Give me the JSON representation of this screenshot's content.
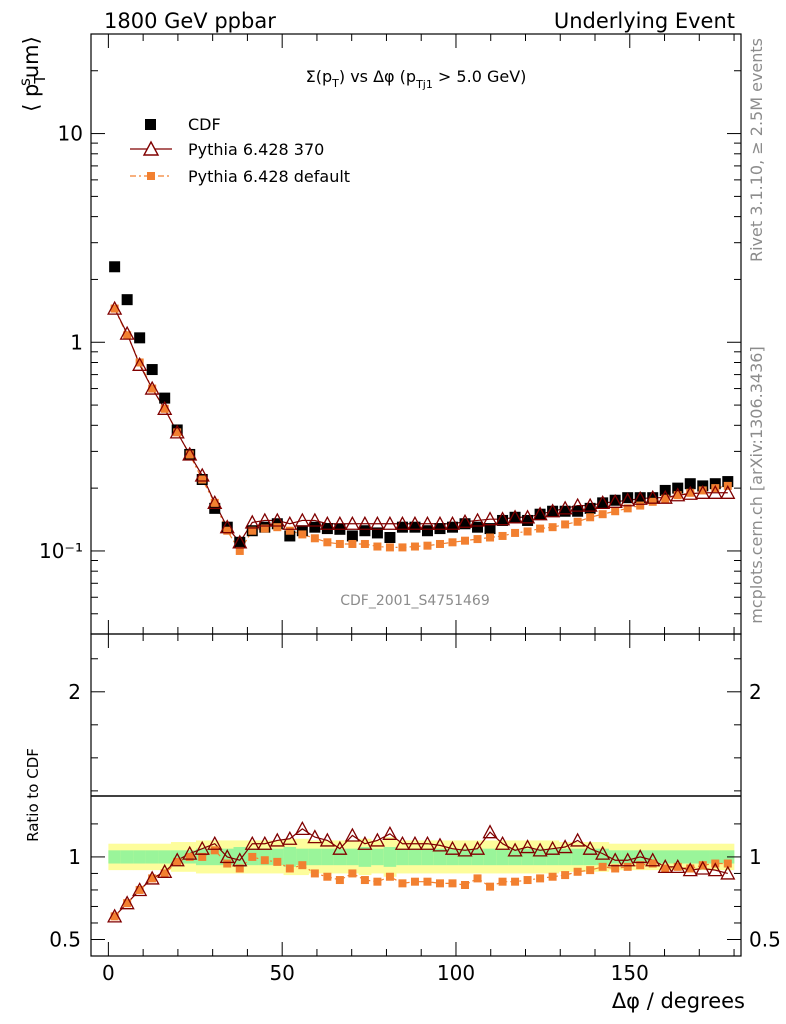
{
  "header": {
    "left": "1800 GeV ppbar",
    "right": "Underlying Event"
  },
  "side_labels": {
    "rivet": "Rivet 3.1.10, ≥ 2.5M events",
    "mcplots": "mcplots.cern.ch [arXiv:1306.3436]"
  },
  "watermark": "CDF_2001_S4751469",
  "chart_data": [
    {
      "type": "scatter",
      "panel": "main",
      "title": "Σ(pT) vs Δφ (pTj1 > 5.0 GeV)",
      "ylabel": "⟨ pTsum⟩",
      "yscale": "log",
      "ylim": [
        0.04,
        30
      ],
      "xlim": [
        -5,
        182
      ],
      "ytick_labels": [
        "10⁻¹",
        "1",
        "10"
      ],
      "legend_position": "top-left",
      "x": [
        1.8,
        5.4,
        9.0,
        12.6,
        16.2,
        19.8,
        23.4,
        27.0,
        30.6,
        34.2,
        37.8,
        41.4,
        45.0,
        48.6,
        52.2,
        55.8,
        59.4,
        63.0,
        66.6,
        70.2,
        73.8,
        77.4,
        81.0,
        84.6,
        88.2,
        91.8,
        95.4,
        99.0,
        102.6,
        106.2,
        109.8,
        113.4,
        117.0,
        120.6,
        124.2,
        127.8,
        131.4,
        135.0,
        138.6,
        142.2,
        145.8,
        149.4,
        153.0,
        156.6,
        160.2,
        163.8,
        167.4,
        171.0,
        174.6,
        178.2
      ],
      "series": [
        {
          "name": "CDF",
          "marker": "square",
          "color": "#000000",
          "values": [
            2.3,
            1.6,
            1.05,
            0.74,
            0.54,
            0.38,
            0.29,
            0.22,
            0.16,
            0.13,
            0.11,
            0.125,
            0.13,
            0.135,
            0.118,
            0.125,
            0.13,
            0.128,
            0.127,
            0.118,
            0.125,
            0.122,
            0.116,
            0.13,
            0.13,
            0.125,
            0.128,
            0.13,
            0.135,
            0.13,
            0.128,
            0.14,
            0.145,
            0.14,
            0.15,
            0.155,
            0.155,
            0.155,
            0.16,
            0.17,
            0.175,
            0.18,
            0.18,
            0.18,
            0.195,
            0.2,
            0.21,
            0.205,
            0.21,
            0.215
          ]
        },
        {
          "name": "Pythia 6.428 370",
          "marker": "open-triangle",
          "color": "#800000",
          "values": [
            1.45,
            1.1,
            0.78,
            0.6,
            0.48,
            0.37,
            0.29,
            0.23,
            0.17,
            0.13,
            0.11,
            0.137,
            0.14,
            0.14,
            0.135,
            0.14,
            0.14,
            0.135,
            0.135,
            0.135,
            0.135,
            0.135,
            0.135,
            0.135,
            0.135,
            0.135,
            0.135,
            0.135,
            0.138,
            0.14,
            0.142,
            0.142,
            0.145,
            0.145,
            0.15,
            0.155,
            0.16,
            0.165,
            0.165,
            0.17,
            0.172,
            0.175,
            0.178,
            0.18,
            0.18,
            0.185,
            0.188,
            0.19,
            0.19,
            0.19
          ]
        },
        {
          "name": "Pythia 6.428 default",
          "marker": "filled-square",
          "color": "#f28030",
          "values": [
            1.45,
            1.08,
            0.8,
            0.6,
            0.48,
            0.37,
            0.29,
            0.22,
            0.17,
            0.125,
            0.1,
            0.125,
            0.128,
            0.13,
            0.125,
            0.12,
            0.115,
            0.11,
            0.108,
            0.108,
            0.108,
            0.105,
            0.104,
            0.104,
            0.105,
            0.106,
            0.108,
            0.11,
            0.112,
            0.114,
            0.116,
            0.118,
            0.122,
            0.124,
            0.128,
            0.13,
            0.134,
            0.138,
            0.145,
            0.15,
            0.155,
            0.16,
            0.165,
            0.172,
            0.178,
            0.185,
            0.19,
            0.195,
            0.2,
            0.205
          ]
        }
      ]
    },
    {
      "type": "scatter",
      "panel": "ratio",
      "ylabel": "Ratio to CDF",
      "xlabel": "Δφ / degrees",
      "ylim": [
        0.4,
        2.35
      ],
      "xlim": [
        -5,
        182
      ],
      "x_tick_labels": [
        "0",
        "50",
        "100",
        "150"
      ],
      "y_tick_labels": [
        "0.5",
        "1",
        "2"
      ],
      "bands": {
        "inner_color": "#9af59a",
        "outer_color": "#fdfd9c",
        "inner_halfwidth": [
          0.04,
          0.04,
          0.04,
          0.04,
          0.04,
          0.04,
          0.04,
          0.05,
          0.05,
          0.05,
          0.06,
          0.05,
          0.05,
          0.05,
          0.06,
          0.05,
          0.05,
          0.05,
          0.05,
          0.05,
          0.06,
          0.05,
          0.06,
          0.05,
          0.05,
          0.05,
          0.05,
          0.05,
          0.05,
          0.05,
          0.05,
          0.05,
          0.05,
          0.05,
          0.05,
          0.05,
          0.05,
          0.05,
          0.05,
          0.05,
          0.04,
          0.04,
          0.04,
          0.04,
          0.04,
          0.04,
          0.04,
          0.04,
          0.04,
          0.04
        ],
        "outer_halfwidth": [
          0.08,
          0.08,
          0.08,
          0.08,
          0.08,
          0.09,
          0.09,
          0.1,
          0.1,
          0.1,
          0.1,
          0.1,
          0.1,
          0.1,
          0.11,
          0.11,
          0.1,
          0.1,
          0.1,
          0.1,
          0.11,
          0.1,
          0.12,
          0.1,
          0.1,
          0.1,
          0.1,
          0.1,
          0.1,
          0.1,
          0.1,
          0.1,
          0.1,
          0.1,
          0.1,
          0.1,
          0.09,
          0.09,
          0.09,
          0.09,
          0.08,
          0.08,
          0.08,
          0.08,
          0.08,
          0.08,
          0.08,
          0.08,
          0.08,
          0.08
        ]
      },
      "series": [
        {
          "name": "Pythia 6.428 370",
          "marker": "open-triangle",
          "color": "#800000",
          "values": [
            0.64,
            0.72,
            0.8,
            0.87,
            0.91,
            0.98,
            1.02,
            1.05,
            1.08,
            1.0,
            0.98,
            1.08,
            1.08,
            1.1,
            1.11,
            1.17,
            1.12,
            1.1,
            1.05,
            1.13,
            1.08,
            1.1,
            1.14,
            1.08,
            1.08,
            1.08,
            1.07,
            1.05,
            1.04,
            1.05,
            1.15,
            1.08,
            1.04,
            1.06,
            1.04,
            1.05,
            1.06,
            1.1,
            1.05,
            1.02,
            0.98,
            0.98,
            1.0,
            0.98,
            0.94,
            0.94,
            0.92,
            0.93,
            0.92,
            0.9
          ]
        },
        {
          "name": "Pythia 6.428 default",
          "marker": "filled-square",
          "color": "#f28030",
          "values": [
            0.64,
            0.72,
            0.8,
            0.87,
            0.9,
            0.97,
            1.0,
            1.0,
            1.04,
            0.96,
            0.93,
            1.0,
            0.98,
            0.97,
            0.93,
            0.95,
            0.9,
            0.88,
            0.86,
            0.9,
            0.86,
            0.85,
            0.88,
            0.84,
            0.85,
            0.85,
            0.84,
            0.84,
            0.83,
            0.87,
            0.82,
            0.85,
            0.85,
            0.86,
            0.87,
            0.88,
            0.89,
            0.91,
            0.92,
            0.94,
            0.93,
            0.94,
            0.95,
            0.96,
            0.93,
            0.94,
            0.93,
            0.95,
            0.96,
            0.96
          ]
        }
      ]
    }
  ]
}
